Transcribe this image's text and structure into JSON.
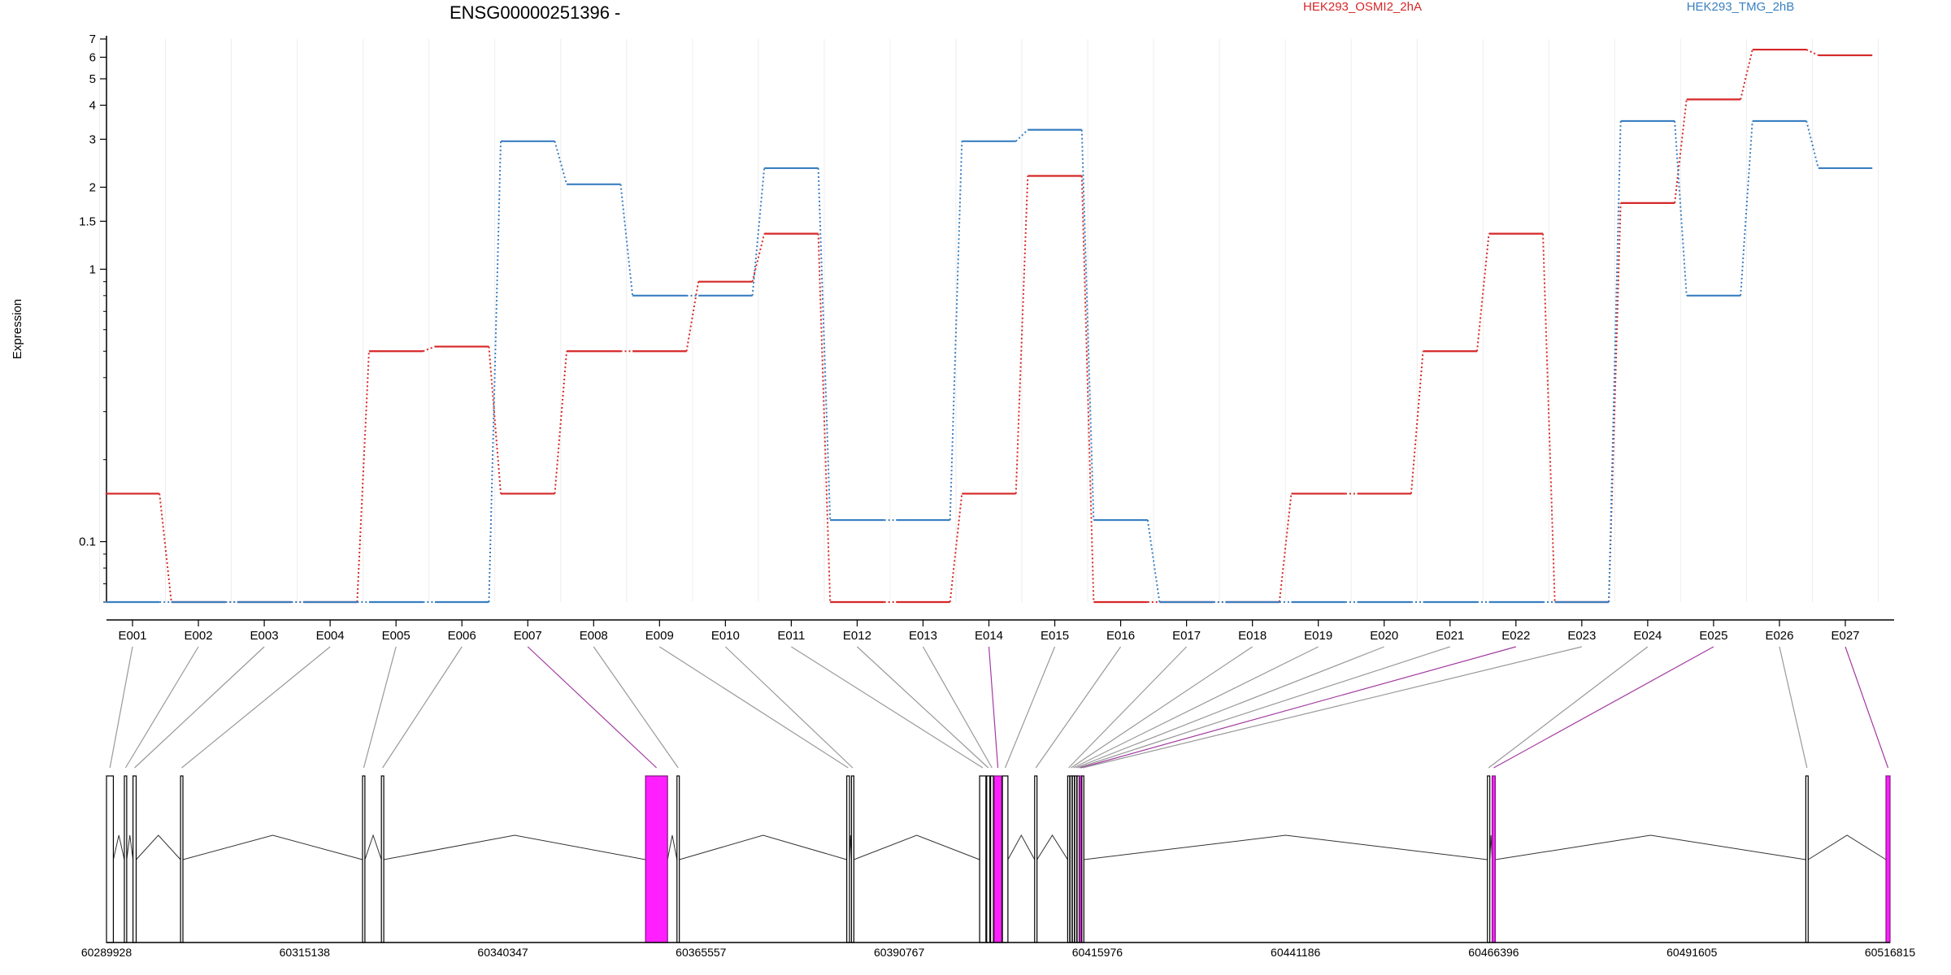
{
  "chart_data": {
    "type": "line",
    "title": "ENSG00000251396 -",
    "ylabel": "Expression",
    "y_scale": "log",
    "ylim": [
      0.06,
      7
    ],
    "y_ticks": [
      {
        "v": 0.1,
        "label": "0.1"
      },
      {
        "v": 1,
        "label": "1"
      },
      {
        "v": 1.5,
        "label": "1.5"
      },
      {
        "v": 2,
        "label": "2"
      },
      {
        "v": 3,
        "label": "3"
      },
      {
        "v": 4,
        "label": "4"
      },
      {
        "v": 5,
        "label": "5"
      },
      {
        "v": 6,
        "label": "6"
      },
      {
        "v": 7,
        "label": "7"
      }
    ],
    "grid": "vertical-light",
    "legend": "top",
    "categories": [
      "E001",
      "E002",
      "E003",
      "E004",
      "E005",
      "E006",
      "E007",
      "E008",
      "E009",
      "E010",
      "E011",
      "E012",
      "E013",
      "E014",
      "E015",
      "E016",
      "E017",
      "E018",
      "E019",
      "E020",
      "E021",
      "E022",
      "E023",
      "E024",
      "E025",
      "E026",
      "E027"
    ],
    "series": [
      {
        "name": "HEK293_OSMI2_2hA",
        "color": "#d62728",
        "values": [
          0.15,
          0.06,
          0.06,
          0.06,
          0.5,
          0.52,
          0.15,
          0.5,
          0.5,
          0.9,
          1.35,
          0.06,
          0.06,
          0.15,
          2.2,
          0.06,
          0.06,
          0.06,
          0.15,
          0.15,
          0.5,
          1.35,
          0.06,
          1.75,
          4.2,
          6.4,
          6.1
        ]
      },
      {
        "name": "HEK293_TMG_2hB",
        "color": "#3a7fc1",
        "values": [
          0.06,
          0.06,
          0.06,
          0.06,
          0.06,
          0.06,
          2.95,
          2.05,
          0.8,
          0.8,
          2.35,
          0.12,
          0.12,
          2.95,
          3.25,
          0.12,
          0.06,
          0.06,
          0.06,
          0.06,
          0.06,
          0.06,
          0.06,
          3.5,
          0.8,
          3.5,
          2.35
        ]
      }
    ],
    "genomic_axis": {
      "range": [
        60289928,
        60516815
      ],
      "tick_labels": [
        "60289928",
        "60315138",
        "60340347",
        "60365557",
        "60390767",
        "60415976",
        "60441186",
        "60466396",
        "60491605",
        "60516815"
      ],
      "exons": [
        {
          "id": "E001",
          "start": 60289928,
          "end": 60290800,
          "sig": false
        },
        {
          "id": "E002",
          "start": 60292200,
          "end": 60292500,
          "sig": false
        },
        {
          "id": "E003",
          "start": 60293300,
          "end": 60293700,
          "sig": false
        },
        {
          "id": "E004",
          "start": 60299350,
          "end": 60299650,
          "sig": false
        },
        {
          "id": "E005",
          "start": 60322500,
          "end": 60322800,
          "sig": false
        },
        {
          "id": "E006",
          "start": 60324900,
          "end": 60325200,
          "sig": false
        },
        {
          "id": "E007",
          "start": 60358500,
          "end": 60361300,
          "sig": true
        },
        {
          "id": "E008",
          "start": 60362500,
          "end": 60362800,
          "sig": false
        },
        {
          "id": "E009",
          "start": 60384100,
          "end": 60384450,
          "sig": false
        },
        {
          "id": "E010",
          "start": 60384700,
          "end": 60385000,
          "sig": false
        },
        {
          "id": "E011",
          "start": 60401000,
          "end": 60401800,
          "sig": false
        },
        {
          "id": "E012",
          "start": 60401900,
          "end": 60402300,
          "sig": false
        },
        {
          "id": "E013",
          "start": 60402400,
          "end": 60402750,
          "sig": false
        },
        {
          "id": "E014",
          "start": 60402850,
          "end": 60403800,
          "sig": true
        },
        {
          "id": "E015",
          "start": 60403900,
          "end": 60404600,
          "sig": false
        },
        {
          "id": "E016",
          "start": 60408000,
          "end": 60408300,
          "sig": false
        },
        {
          "id": "E017",
          "start": 60412200,
          "end": 60412450,
          "sig": false
        },
        {
          "id": "E018",
          "start": 60412500,
          "end": 60412750,
          "sig": false
        },
        {
          "id": "E019",
          "start": 60412800,
          "end": 60413050,
          "sig": false
        },
        {
          "id": "E020",
          "start": 60413100,
          "end": 60413350,
          "sig": false
        },
        {
          "id": "E021",
          "start": 60413400,
          "end": 60413650,
          "sig": false
        },
        {
          "id": "E022",
          "start": 60413700,
          "end": 60413950,
          "sig": true
        },
        {
          "id": "E023",
          "start": 60414000,
          "end": 60414250,
          "sig": false
        },
        {
          "id": "E024",
          "start": 60465600,
          "end": 60465900,
          "sig": false
        },
        {
          "id": "E025",
          "start": 60466200,
          "end": 60466600,
          "sig": true
        },
        {
          "id": "E026",
          "start": 60506100,
          "end": 60506400,
          "sig": false
        },
        {
          "id": "E027",
          "start": 60516300,
          "end": 60516815,
          "sig": true
        }
      ]
    }
  }
}
